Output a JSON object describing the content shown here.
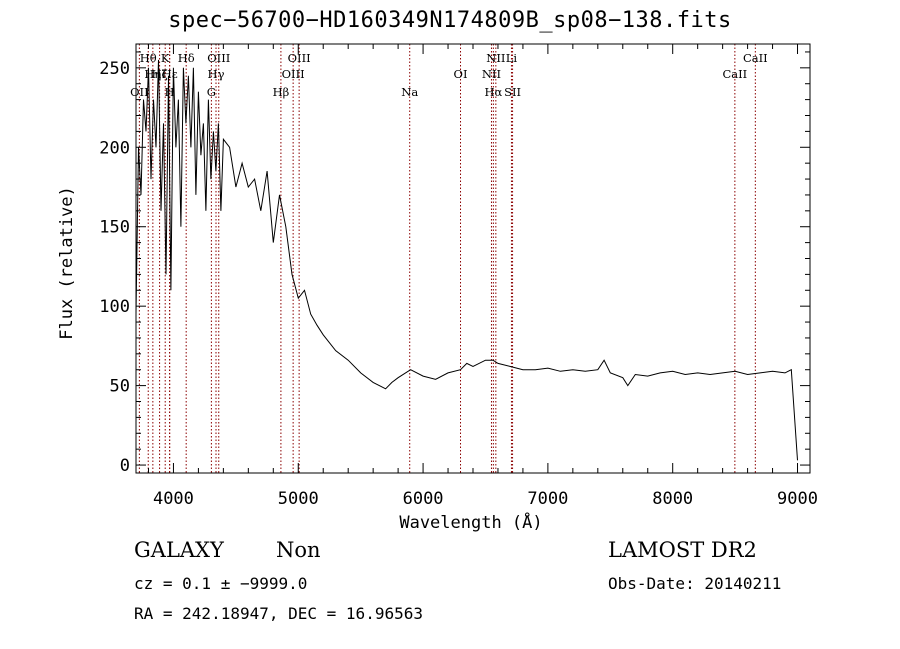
{
  "chart_data": {
    "type": "line",
    "title": "spec−56700−HD160349N174809B_sp08−138.fits",
    "xlabel": "Wavelength (Å)",
    "ylabel": "Flux (relative)",
    "xlim": [
      3700,
      9100
    ],
    "ylim": [
      -5,
      265
    ],
    "xticks": [
      4000,
      5000,
      6000,
      7000,
      8000,
      9000
    ],
    "yticks": [
      0,
      50,
      100,
      150,
      200,
      250
    ],
    "grid": false,
    "series": [
      {
        "x": [
          3700,
          3720,
          3740,
          3760,
          3780,
          3800,
          3820,
          3840,
          3860,
          3880,
          3900,
          3920,
          3940,
          3960,
          3980,
          4000,
          4020,
          4040,
          4060,
          4080,
          4100,
          4120,
          4140,
          4160,
          4180,
          4200,
          4220,
          4240,
          4260,
          4280,
          4300,
          4320,
          4340,
          4360,
          4380,
          4400,
          4450,
          4500,
          4550,
          4600,
          4650,
          4700,
          4750,
          4800,
          4850,
          4900,
          4950,
          5000,
          5050,
          5100,
          5150,
          5200,
          5300,
          5400,
          5500,
          5600,
          5700,
          5750,
          5800,
          5900,
          6000,
          6100,
          6200,
          6300,
          6350,
          6400,
          6500,
          6560,
          6600,
          6700,
          6800,
          6900,
          7000,
          7100,
          7200,
          7300,
          7400,
          7450,
          7500,
          7600,
          7640,
          7700,
          7800,
          7900,
          8000,
          8100,
          8200,
          8300,
          8400,
          8500,
          8600,
          8700,
          8800,
          8900,
          8950,
          9000
        ],
        "y": [
          95,
          200,
          170,
          230,
          210,
          250,
          180,
          230,
          200,
          255,
          160,
          215,
          120,
          245,
          110,
          250,
          200,
          230,
          150,
          250,
          215,
          245,
          200,
          250,
          170,
          235,
          195,
          215,
          160,
          230,
          180,
          210,
          185,
          215,
          160,
          205,
          200,
          175,
          190,
          175,
          180,
          160,
          185,
          140,
          170,
          150,
          120,
          105,
          110,
          95,
          88,
          82,
          72,
          66,
          58,
          52,
          48,
          52,
          55,
          60,
          56,
          54,
          58,
          60,
          64,
          62,
          66,
          66,
          64,
          62,
          60,
          60,
          61,
          59,
          60,
          59,
          60,
          66,
          58,
          55,
          50,
          57,
          56,
          58,
          59,
          57,
          58,
          57,
          58,
          59,
          57,
          58,
          59,
          58,
          60,
          3
        ]
      }
    ],
    "emission_lines": [
      {
        "label": "OII",
        "x": 3727,
        "row": 3
      },
      {
        "label": "Hθ",
        "x": 3798,
        "row": 1
      },
      {
        "label": "Hη",
        "x": 3835,
        "row": 2
      },
      {
        "label": "Hζ",
        "x": 3889,
        "row": 2
      },
      {
        "label": "K",
        "x": 3934,
        "row": 1
      },
      {
        "label": "H",
        "x": 3969,
        "row": 3
      },
      {
        "label": "Hε",
        "x": 3970,
        "row": 2
      },
      {
        "label": "Hδ",
        "x": 4102,
        "row": 1
      },
      {
        "label": "G",
        "x": 4304,
        "row": 3
      },
      {
        "label": "Hγ",
        "x": 4341,
        "row": 2
      },
      {
        "label": "OIII",
        "x": 4363,
        "row": 1
      },
      {
        "label": "Hβ",
        "x": 4861,
        "row": 3
      },
      {
        "label": "OIII",
        "x": 4959,
        "row": 2
      },
      {
        "label": "OIII",
        "x": 5007,
        "row": 1
      },
      {
        "label": "Na",
        "x": 5893,
        "row": 3
      },
      {
        "label": "OI",
        "x": 6300,
        "row": 2
      },
      {
        "label": "NII",
        "x": 6548,
        "row": 2
      },
      {
        "label": "Hα",
        "x": 6563,
        "row": 3
      },
      {
        "label": "NII",
        "x": 6583,
        "row": 1
      },
      {
        "label": "Li",
        "x": 6708,
        "row": 1
      },
      {
        "label": "SII",
        "x": 6717,
        "row": 3
      },
      {
        "label": "CaII",
        "x": 8498,
        "row": 2
      },
      {
        "label": "CaII",
        "x": 8662,
        "row": 1
      }
    ],
    "line_color": "#000000",
    "marker_color": "#8b0000"
  },
  "footer": {
    "class_label": "GALAXY",
    "subclass_label": "Non",
    "survey": "LAMOST DR2",
    "redshift": "cz = 0.1 ± −9999.0",
    "obs_date": "Obs-Date: 20140211",
    "coords": "RA = 242.18947, DEC =  16.96563"
  }
}
